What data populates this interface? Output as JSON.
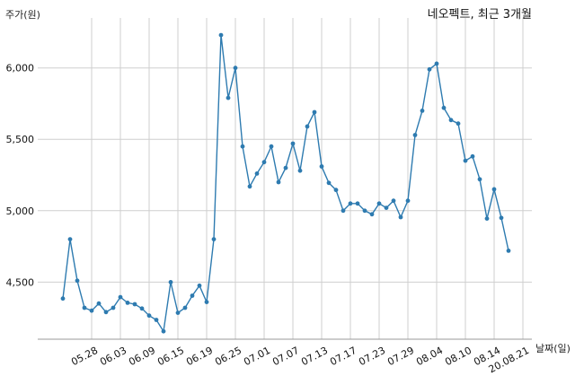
{
  "chart_data": {
    "type": "line",
    "title": "네오펙트, 최근 3개월",
    "xlabel": "날짜(일)",
    "ylabel": "주가(원)",
    "ylim": [
      4100,
      6350
    ],
    "yticks": [
      4500,
      5000,
      5500,
      6000
    ],
    "ytick_labels": [
      "4,500",
      "5,000",
      "5,500",
      "6,000"
    ],
    "xticks": [
      {
        "index": 4,
        "label": "05.28"
      },
      {
        "index": 8,
        "label": "06.03"
      },
      {
        "index": 12,
        "label": "06.09"
      },
      {
        "index": 16,
        "label": "06.15"
      },
      {
        "index": 20,
        "label": "06.19"
      },
      {
        "index": 24,
        "label": "06.25"
      },
      {
        "index": 28,
        "label": "07.01"
      },
      {
        "index": 32,
        "label": "07.07"
      },
      {
        "index": 36,
        "label": "07.13"
      },
      {
        "index": 40,
        "label": "07.17"
      },
      {
        "index": 44,
        "label": "07.23"
      },
      {
        "index": 48,
        "label": "07.29"
      },
      {
        "index": 52,
        "label": "08.04"
      },
      {
        "index": 56,
        "label": "08.10"
      },
      {
        "index": 60,
        "label": "08.14"
      },
      {
        "index": 64,
        "label": "20.08.21"
      }
    ],
    "grid": true,
    "series": [
      {
        "color": "#2e7bb0",
        "values": [
          4385,
          4800,
          4510,
          4320,
          4300,
          4350,
          4290,
          4320,
          4395,
          4355,
          4345,
          4315,
          4265,
          4235,
          4155,
          4500,
          4285,
          4320,
          4405,
          4475,
          4360,
          4800,
          6230,
          5790,
          6000,
          5450,
          5170,
          5260,
          5340,
          5450,
          5200,
          5300,
          5470,
          5280,
          5590,
          5690,
          5310,
          5195,
          5145,
          5000,
          5050,
          5050,
          5000,
          4975,
          5050,
          5020,
          5070,
          4955,
          5070,
          5530,
          5700,
          5990,
          6030,
          5720,
          5635,
          5610,
          5350,
          5380,
          5220,
          4945,
          5150,
          4950,
          4720
        ]
      }
    ]
  }
}
